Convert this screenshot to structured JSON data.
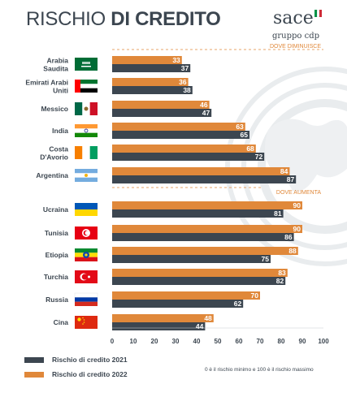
{
  "header": {
    "title_light": "RISCHIO",
    "title_bold": "DI CREDITO"
  },
  "logo": {
    "name": "sace",
    "subtitle": "gruppo cdp",
    "flag_colors": [
      "#009246",
      "#ffffff",
      "#ce2b37"
    ]
  },
  "colors": {
    "series_2021": "#3c4650",
    "series_2022": "#e0883a",
    "section_label": "#e0883a",
    "text": "#3c4650"
  },
  "sections": {
    "decrease_label": "DOVE DIMINUISCE",
    "increase_label": "DOVE AUMENTA"
  },
  "chart_data": {
    "type": "bar",
    "orientation": "horizontal",
    "categories": [
      "Arabia Saudita",
      "Emirati Arabi Uniti",
      "Messico",
      "India",
      "Costa D'Avorio",
      "Argentina",
      "Ucraina",
      "Tunisia",
      "Etiopia",
      "Turchia",
      "Russia",
      "Cina"
    ],
    "category_lines": [
      [
        "Arabia",
        "Saudita"
      ],
      [
        "Emirati Arabi",
        "Uniti"
      ],
      [
        "Messico"
      ],
      [
        "India"
      ],
      [
        "Costa",
        "D'Avorio"
      ],
      [
        "Argentina"
      ],
      [
        "Ucraina"
      ],
      [
        "Tunisia"
      ],
      [
        "Etiopia"
      ],
      [
        "Turchia"
      ],
      [
        "Russia"
      ],
      [
        "Cina"
      ]
    ],
    "flag_icons": [
      "saudi-arabia-flag-icon",
      "uae-flag-icon",
      "mexico-flag-icon",
      "india-flag-icon",
      "ivory-coast-flag-icon",
      "argentina-flag-icon",
      "ukraine-flag-icon",
      "tunisia-flag-icon",
      "ethiopia-flag-icon",
      "turkey-flag-icon",
      "russia-flag-icon",
      "china-flag-icon"
    ],
    "series": [
      {
        "name": "Rischio di credito 2022",
        "values": [
          33,
          36,
          46,
          63,
          68,
          84,
          90,
          90,
          88,
          83,
          70,
          48
        ]
      },
      {
        "name": "Rischio di credito 2021",
        "values": [
          37,
          38,
          47,
          65,
          72,
          87,
          81,
          86,
          75,
          82,
          62,
          44
        ]
      }
    ],
    "xlim": [
      0,
      100
    ],
    "xticks": [
      0,
      10,
      20,
      30,
      40,
      50,
      60,
      70,
      80,
      90,
      100
    ],
    "xlabel": "",
    "ylabel": "",
    "grid": false,
    "legend_position": "bottom-left"
  },
  "legend": {
    "items": [
      {
        "label": "Rischio di credito 2021",
        "color": "#3c4650"
      },
      {
        "label": "Rischio di credito 2022",
        "color": "#e0883a"
      }
    ]
  },
  "footnote": "0 è il rischio minimo e 100 è il rischio massimo"
}
